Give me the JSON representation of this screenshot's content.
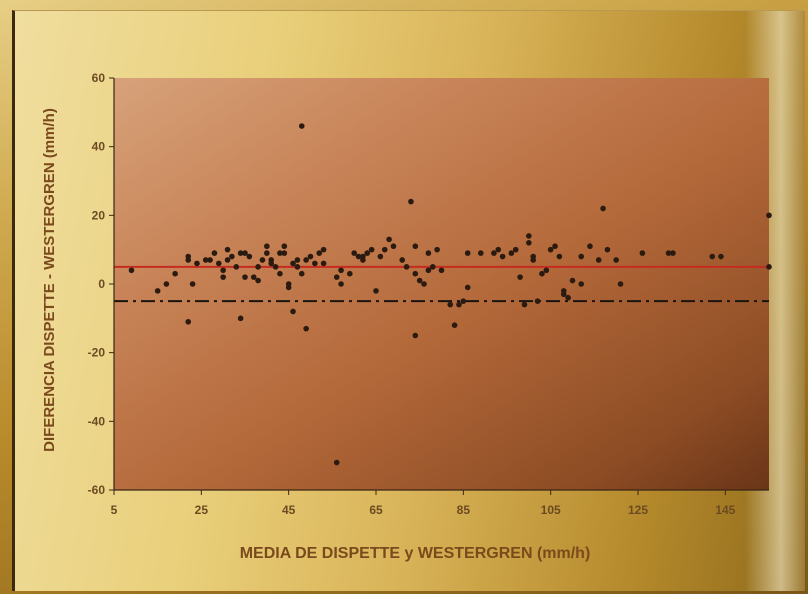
{
  "chart_data": {
    "type": "scatter",
    "xlabel": "MEDIA DE DISPETTE y WESTERGREN (mm/h)",
    "ylabel": "DIFERENCIA DISPETTE - WESTERGREN (mm/h)",
    "xlim": [
      5,
      155
    ],
    "ylim": [
      -60,
      60
    ],
    "x_ticks": [
      5,
      25,
      45,
      65,
      85,
      105,
      125,
      145
    ],
    "y_ticks": [
      60,
      40,
      20,
      0,
      -20,
      -40,
      -60
    ],
    "reference_lines": [
      {
        "y": 5,
        "style": "solid",
        "color": "#c62b1f"
      },
      {
        "y": -5,
        "style": "dash-dot",
        "color": "#1a1410"
      }
    ],
    "points": [
      [
        9,
        4
      ],
      [
        15,
        -2
      ],
      [
        17,
        0
      ],
      [
        19,
        3
      ],
      [
        22,
        7
      ],
      [
        22,
        8
      ],
      [
        22,
        -11
      ],
      [
        23,
        0
      ],
      [
        24,
        6
      ],
      [
        26,
        7
      ],
      [
        27,
        7
      ],
      [
        28,
        9
      ],
      [
        29,
        6
      ],
      [
        30,
        4
      ],
      [
        30,
        2
      ],
      [
        31,
        10
      ],
      [
        31,
        7
      ],
      [
        32,
        8
      ],
      [
        33,
        5
      ],
      [
        34,
        9
      ],
      [
        34,
        -10
      ],
      [
        35,
        9
      ],
      [
        35,
        2
      ],
      [
        36,
        8
      ],
      [
        37,
        2
      ],
      [
        38,
        5
      ],
      [
        38,
        1
      ],
      [
        39,
        7
      ],
      [
        40,
        9
      ],
      [
        40,
        11
      ],
      [
        41,
        7
      ],
      [
        41,
        6
      ],
      [
        42,
        5
      ],
      [
        43,
        3
      ],
      [
        43,
        9
      ],
      [
        44,
        11
      ],
      [
        44,
        9
      ],
      [
        45,
        -1
      ],
      [
        45,
        0
      ],
      [
        46,
        -8
      ],
      [
        46,
        6
      ],
      [
        47,
        7
      ],
      [
        47,
        5
      ],
      [
        48,
        46
      ],
      [
        48,
        3
      ],
      [
        49,
        -13
      ],
      [
        49,
        7
      ],
      [
        50,
        8
      ],
      [
        51,
        6
      ],
      [
        52,
        9
      ],
      [
        53,
        10
      ],
      [
        53,
        6
      ],
      [
        56,
        2
      ],
      [
        56,
        -52
      ],
      [
        57,
        4
      ],
      [
        57,
        0
      ],
      [
        59,
        3
      ],
      [
        60,
        9
      ],
      [
        61,
        8
      ],
      [
        62,
        8
      ],
      [
        62,
        7
      ],
      [
        63,
        9
      ],
      [
        64,
        10
      ],
      [
        65,
        -2
      ],
      [
        66,
        8
      ],
      [
        67,
        10
      ],
      [
        68,
        13
      ],
      [
        69,
        11
      ],
      [
        71,
        7
      ],
      [
        72,
        5
      ],
      [
        73,
        24
      ],
      [
        74,
        11
      ],
      [
        74,
        3
      ],
      [
        74,
        -15
      ],
      [
        75,
        1
      ],
      [
        76,
        0
      ],
      [
        77,
        4
      ],
      [
        77,
        9
      ],
      [
        78,
        5
      ],
      [
        79,
        10
      ],
      [
        80,
        4
      ],
      [
        82,
        -6
      ],
      [
        83,
        -12
      ],
      [
        84,
        -6
      ],
      [
        85,
        -5
      ],
      [
        86,
        -1
      ],
      [
        86,
        9
      ],
      [
        89,
        9
      ],
      [
        92,
        9
      ],
      [
        93,
        10
      ],
      [
        94,
        8
      ],
      [
        96,
        9
      ],
      [
        97,
        10
      ],
      [
        98,
        2
      ],
      [
        99,
        -6
      ],
      [
        100,
        12
      ],
      [
        100,
        14
      ],
      [
        101,
        8
      ],
      [
        101,
        7
      ],
      [
        102,
        -5
      ],
      [
        103,
        3
      ],
      [
        104,
        4
      ],
      [
        105,
        10
      ],
      [
        106,
        11
      ],
      [
        107,
        8
      ],
      [
        108,
        -2
      ],
      [
        108,
        -3
      ],
      [
        109,
        -4
      ],
      [
        110,
        1
      ],
      [
        112,
        8
      ],
      [
        112,
        0
      ],
      [
        114,
        11
      ],
      [
        116,
        7
      ],
      [
        117,
        22
      ],
      [
        118,
        10
      ],
      [
        120,
        7
      ],
      [
        121,
        0
      ],
      [
        126,
        9
      ],
      [
        132,
        9
      ],
      [
        133,
        9
      ],
      [
        142,
        8
      ],
      [
        144,
        8
      ],
      [
        155,
        20
      ],
      [
        155,
        5
      ]
    ]
  }
}
